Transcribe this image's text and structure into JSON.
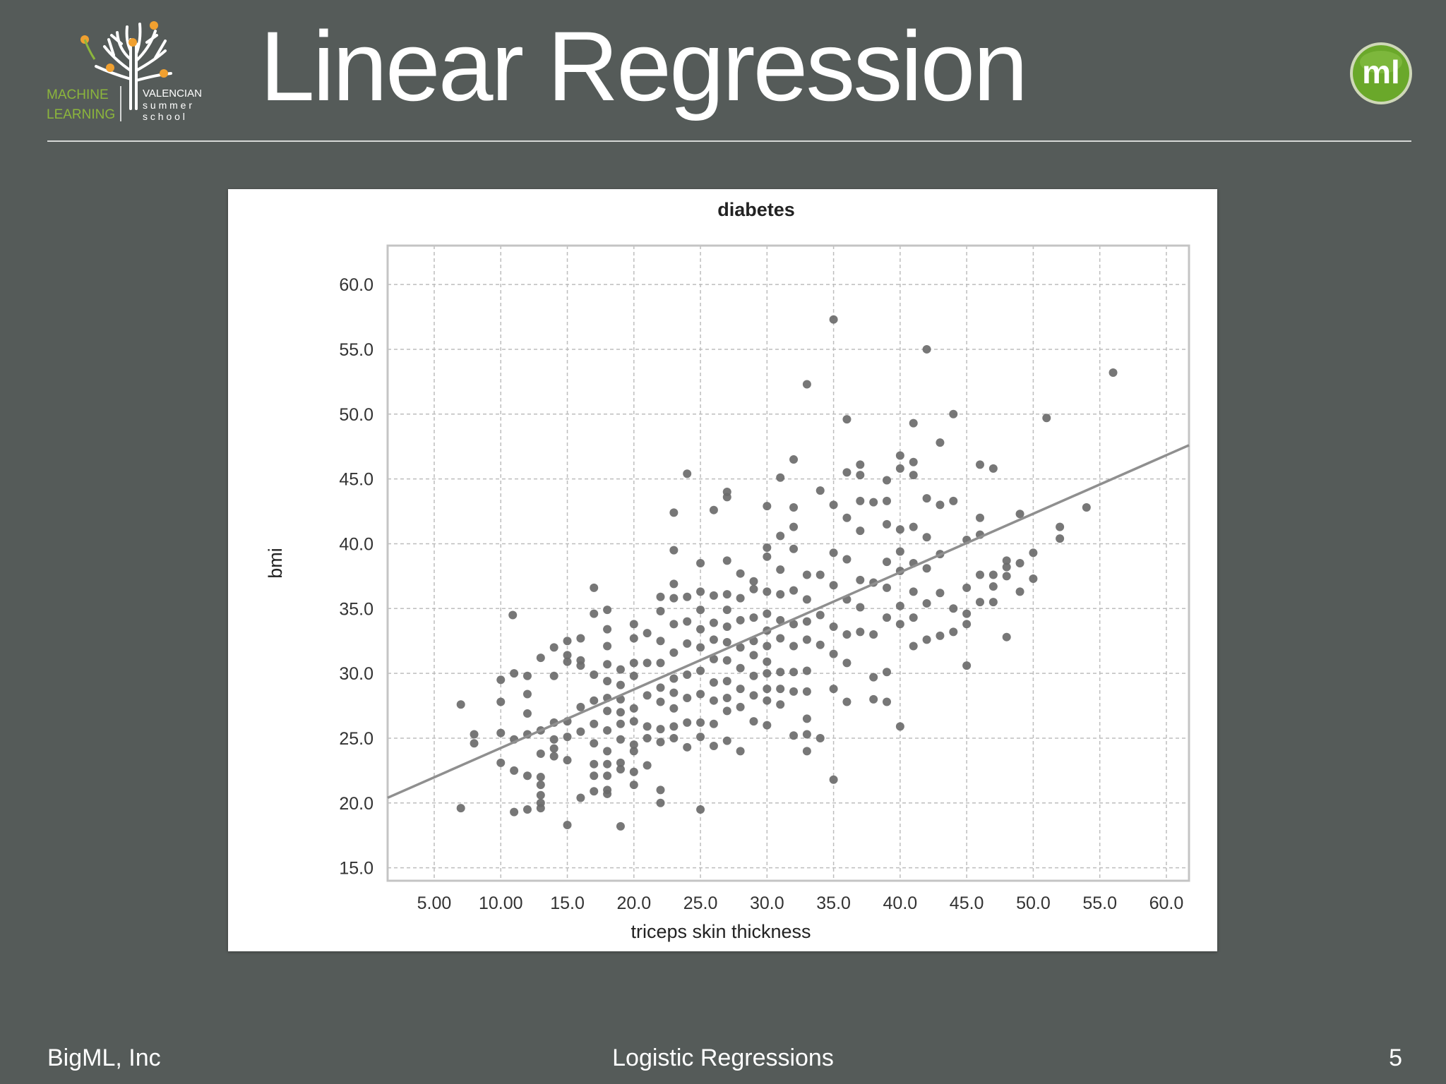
{
  "slide": {
    "title": "Linear Regression",
    "footer_left": "BigML, Inc",
    "footer_center": "Logistic Regressions",
    "page_number": "5"
  },
  "logo_left": {
    "line1_left": "MACHINE",
    "line2_left": "LEARNING",
    "line1_right": "VALENCIAN",
    "line2_right": "s u m m e r",
    "line3_right": "s c h o o l",
    "colors": {
      "green": "#8cb63c",
      "orange": "#f0a030",
      "text": "#ffffff"
    }
  },
  "logo_right": {
    "text": "ml",
    "color": "#6aa82a"
  },
  "chart_data": {
    "type": "scatter",
    "title": "diabetes",
    "xlabel": "triceps skin thickness",
    "ylabel": "bmi",
    "xlim": [
      1.5,
      61.7
    ],
    "ylim": [
      14.0,
      63.0
    ],
    "xticks": [
      "5.00",
      "10.00",
      "15.0",
      "20.0",
      "25.0",
      "30.0",
      "35.0",
      "40.0",
      "45.0",
      "50.0",
      "55.0",
      "60.0"
    ],
    "yticks": [
      "15.0",
      "20.0",
      "25.0",
      "30.0",
      "35.0",
      "40.0",
      "45.0",
      "50.0",
      "55.0",
      "60.0"
    ],
    "grid": true,
    "point_color": "#6b6b6b",
    "line_color": "#8f8f8f",
    "regression_line": {
      "x": [
        1.5,
        61.7
      ],
      "y": [
        20.4,
        47.6
      ]
    },
    "points": [
      [
        7,
        27.6
      ],
      [
        7,
        19.6
      ],
      [
        8,
        25.3
      ],
      [
        8,
        24.6
      ],
      [
        10,
        29.5
      ],
      [
        10,
        27.8
      ],
      [
        10,
        25.4
      ],
      [
        10,
        23.1
      ],
      [
        10.9,
        34.5
      ],
      [
        11,
        30.0
      ],
      [
        11,
        24.9
      ],
      [
        11,
        22.5
      ],
      [
        11,
        19.3
      ],
      [
        12,
        29.8
      ],
      [
        12,
        28.4
      ],
      [
        12,
        26.9
      ],
      [
        12,
        25.3
      ],
      [
        12,
        22.1
      ],
      [
        12,
        19.5
      ],
      [
        13,
        31.2
      ],
      [
        13,
        25.6
      ],
      [
        13,
        23.8
      ],
      [
        13,
        22.0
      ],
      [
        13,
        21.4
      ],
      [
        13,
        20.6
      ],
      [
        13,
        20.0
      ],
      [
        13,
        19.6
      ],
      [
        14,
        32.0
      ],
      [
        14,
        26.2
      ],
      [
        14,
        24.9
      ],
      [
        14,
        24.2
      ],
      [
        14,
        23.6
      ],
      [
        14,
        29.8
      ],
      [
        15,
        32.5
      ],
      [
        15,
        31.4
      ],
      [
        15,
        30.9
      ],
      [
        15,
        26.3
      ],
      [
        15,
        25.1
      ],
      [
        15,
        23.3
      ],
      [
        15,
        18.3
      ],
      [
        16,
        32.7
      ],
      [
        16,
        31.0
      ],
      [
        16,
        30.6
      ],
      [
        16,
        27.4
      ],
      [
        16,
        25.5
      ],
      [
        16,
        20.4
      ],
      [
        17,
        36.6
      ],
      [
        17,
        34.6
      ],
      [
        17,
        29.9
      ],
      [
        17,
        27.9
      ],
      [
        17,
        26.1
      ],
      [
        17,
        24.6
      ],
      [
        17,
        23.0
      ],
      [
        17,
        22.1
      ],
      [
        17,
        20.9
      ],
      [
        18,
        34.9
      ],
      [
        18,
        33.4
      ],
      [
        18,
        32.1
      ],
      [
        18,
        30.7
      ],
      [
        18,
        29.4
      ],
      [
        18,
        28.1
      ],
      [
        18,
        27.1
      ],
      [
        18,
        25.6
      ],
      [
        18,
        24.0
      ],
      [
        18,
        23.0
      ],
      [
        18,
        22.1
      ],
      [
        18,
        21.0
      ],
      [
        18,
        20.7
      ],
      [
        19,
        30.3
      ],
      [
        19,
        29.1
      ],
      [
        19,
        28.0
      ],
      [
        19,
        27.0
      ],
      [
        19,
        26.1
      ],
      [
        19,
        24.9
      ],
      [
        19,
        23.1
      ],
      [
        19,
        22.6
      ],
      [
        19,
        18.2
      ],
      [
        20,
        33.8
      ],
      [
        20,
        32.7
      ],
      [
        20,
        30.8
      ],
      [
        20,
        29.8
      ],
      [
        20,
        27.3
      ],
      [
        20,
        26.3
      ],
      [
        20,
        24.5
      ],
      [
        20,
        24.0
      ],
      [
        20,
        22.4
      ],
      [
        20,
        21.4
      ],
      [
        21,
        33.1
      ],
      [
        21,
        30.8
      ],
      [
        21,
        28.3
      ],
      [
        21,
        25.9
      ],
      [
        21,
        25.0
      ],
      [
        21,
        22.9
      ],
      [
        22,
        35.9
      ],
      [
        22,
        34.8
      ],
      [
        22,
        32.5
      ],
      [
        22,
        30.8
      ],
      [
        22,
        28.9
      ],
      [
        22,
        27.8
      ],
      [
        22,
        25.7
      ],
      [
        22,
        24.7
      ],
      [
        22,
        21.0
      ],
      [
        22,
        20.0
      ],
      [
        23,
        42.4
      ],
      [
        23,
        39.5
      ],
      [
        23,
        36.9
      ],
      [
        23,
        35.8
      ],
      [
        23,
        33.8
      ],
      [
        23,
        31.6
      ],
      [
        23,
        29.6
      ],
      [
        23,
        28.5
      ],
      [
        23,
        27.3
      ],
      [
        23,
        25.9
      ],
      [
        23,
        25.0
      ],
      [
        24,
        45.4
      ],
      [
        24,
        35.9
      ],
      [
        24,
        34.0
      ],
      [
        24,
        32.3
      ],
      [
        24,
        29.9
      ],
      [
        24,
        28.1
      ],
      [
        24,
        26.2
      ],
      [
        24,
        24.3
      ],
      [
        25,
        38.5
      ],
      [
        25,
        36.3
      ],
      [
        25,
        34.9
      ],
      [
        25,
        33.4
      ],
      [
        25,
        32.0
      ],
      [
        25,
        30.2
      ],
      [
        25,
        28.4
      ],
      [
        25,
        26.2
      ],
      [
        25,
        25.1
      ],
      [
        25,
        19.5
      ],
      [
        26,
        42.6
      ],
      [
        26,
        36.0
      ],
      [
        26,
        33.9
      ],
      [
        26,
        32.6
      ],
      [
        26,
        31.1
      ],
      [
        26,
        29.3
      ],
      [
        26,
        27.9
      ],
      [
        26,
        26.1
      ],
      [
        26,
        24.4
      ],
      [
        27,
        43.6
      ],
      [
        27,
        44.0
      ],
      [
        27,
        38.7
      ],
      [
        27,
        36.1
      ],
      [
        27,
        34.9
      ],
      [
        27,
        33.6
      ],
      [
        27,
        32.4
      ],
      [
        27,
        31.0
      ],
      [
        27,
        29.4
      ],
      [
        27,
        28.1
      ],
      [
        27,
        27.1
      ],
      [
        27,
        24.8
      ],
      [
        28,
        37.7
      ],
      [
        28,
        35.8
      ],
      [
        28,
        34.1
      ],
      [
        28,
        32.0
      ],
      [
        28,
        30.4
      ],
      [
        28,
        28.8
      ],
      [
        28,
        27.4
      ],
      [
        28,
        24.0
      ],
      [
        29,
        37.1
      ],
      [
        29,
        36.5
      ],
      [
        29,
        34.3
      ],
      [
        29,
        32.5
      ],
      [
        29,
        31.4
      ],
      [
        29,
        29.8
      ],
      [
        29,
        28.3
      ],
      [
        29,
        26.3
      ],
      [
        30,
        42.9
      ],
      [
        30,
        39.7
      ],
      [
        30,
        39.0
      ],
      [
        30,
        36.3
      ],
      [
        30,
        34.6
      ],
      [
        30,
        33.3
      ],
      [
        30,
        32.1
      ],
      [
        30,
        30.9
      ],
      [
        30,
        30.0
      ],
      [
        30,
        28.8
      ],
      [
        30,
        27.9
      ],
      [
        30,
        26.0
      ],
      [
        31,
        45.1
      ],
      [
        31,
        40.6
      ],
      [
        31,
        38.0
      ],
      [
        31,
        36.1
      ],
      [
        31,
        34.1
      ],
      [
        31,
        32.7
      ],
      [
        31,
        30.1
      ],
      [
        31,
        28.8
      ],
      [
        31,
        27.6
      ],
      [
        32,
        46.5
      ],
      [
        32,
        42.8
      ],
      [
        32,
        41.3
      ],
      [
        32,
        39.6
      ],
      [
        32,
        36.4
      ],
      [
        32,
        33.8
      ],
      [
        32,
        32.1
      ],
      [
        32,
        30.1
      ],
      [
        32,
        28.6
      ],
      [
        32,
        25.2
      ],
      [
        33,
        52.3
      ],
      [
        33,
        37.6
      ],
      [
        33,
        35.7
      ],
      [
        33,
        34.0
      ],
      [
        33,
        32.6
      ],
      [
        33,
        30.2
      ],
      [
        33,
        28.6
      ],
      [
        33,
        26.5
      ],
      [
        33,
        25.3
      ],
      [
        33,
        24.0
      ],
      [
        34,
        44.1
      ],
      [
        34,
        37.6
      ],
      [
        34,
        34.5
      ],
      [
        34,
        32.2
      ],
      [
        34,
        25.0
      ],
      [
        35,
        57.3
      ],
      [
        35,
        43.0
      ],
      [
        35,
        39.3
      ],
      [
        35,
        36.8
      ],
      [
        35,
        33.6
      ],
      [
        35,
        31.5
      ],
      [
        35,
        28.8
      ],
      [
        35,
        21.8
      ],
      [
        36,
        49.6
      ],
      [
        36,
        45.5
      ],
      [
        36,
        42.0
      ],
      [
        36,
        38.8
      ],
      [
        36,
        35.7
      ],
      [
        36,
        33.0
      ],
      [
        36,
        30.8
      ],
      [
        36,
        27.8
      ],
      [
        37,
        46.1
      ],
      [
        37,
        45.3
      ],
      [
        37,
        43.3
      ],
      [
        37,
        41.0
      ],
      [
        37,
        37.2
      ],
      [
        37,
        35.1
      ],
      [
        37,
        33.2
      ],
      [
        38,
        43.2
      ],
      [
        38,
        37.0
      ],
      [
        38,
        33.0
      ],
      [
        38,
        29.7
      ],
      [
        38,
        28.0
      ],
      [
        39,
        44.9
      ],
      [
        39,
        43.3
      ],
      [
        39,
        41.5
      ],
      [
        39,
        38.6
      ],
      [
        39,
        36.6
      ],
      [
        39,
        34.3
      ],
      [
        39,
        30.1
      ],
      [
        39,
        27.8
      ],
      [
        40,
        46.8
      ],
      [
        40,
        45.8
      ],
      [
        40,
        41.1
      ],
      [
        40,
        39.4
      ],
      [
        40,
        37.9
      ],
      [
        40,
        35.2
      ],
      [
        40,
        33.8
      ],
      [
        40,
        25.9
      ],
      [
        41,
        49.3
      ],
      [
        41,
        46.3
      ],
      [
        41,
        45.3
      ],
      [
        41,
        41.3
      ],
      [
        41,
        38.5
      ],
      [
        41,
        36.3
      ],
      [
        41,
        34.3
      ],
      [
        41,
        32.1
      ],
      [
        42,
        55.0
      ],
      [
        42,
        43.5
      ],
      [
        42,
        40.5
      ],
      [
        42,
        38.1
      ],
      [
        42,
        35.4
      ],
      [
        42,
        32.6
      ],
      [
        43,
        47.8
      ],
      [
        43,
        43.0
      ],
      [
        43,
        39.2
      ],
      [
        43,
        36.2
      ],
      [
        43,
        32.9
      ],
      [
        44,
        50.0
      ],
      [
        44,
        43.3
      ],
      [
        44,
        35.0
      ],
      [
        44,
        33.2
      ],
      [
        45,
        40.3
      ],
      [
        45,
        36.6
      ],
      [
        45,
        34.6
      ],
      [
        45,
        33.8
      ],
      [
        45,
        30.6
      ],
      [
        46,
        46.1
      ],
      [
        46,
        42.0
      ],
      [
        46,
        40.7
      ],
      [
        46,
        37.6
      ],
      [
        46,
        35.5
      ],
      [
        47,
        45.8
      ],
      [
        47,
        37.6
      ],
      [
        47,
        36.7
      ],
      [
        47,
        35.5
      ],
      [
        48,
        38.7
      ],
      [
        48,
        38.2
      ],
      [
        48,
        37.5
      ],
      [
        48,
        32.8
      ],
      [
        49,
        42.3
      ],
      [
        49,
        38.5
      ],
      [
        49,
        36.3
      ],
      [
        50,
        39.3
      ],
      [
        50,
        37.3
      ],
      [
        51,
        49.7
      ],
      [
        52,
        41.3
      ],
      [
        52,
        40.4
      ],
      [
        54,
        42.8
      ],
      [
        56,
        53.2
      ]
    ]
  }
}
